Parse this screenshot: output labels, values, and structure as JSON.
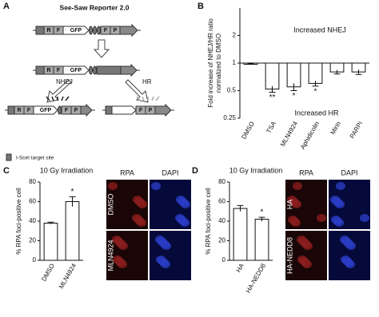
{
  "panel_labels": [
    "A",
    "B",
    "C",
    "D"
  ],
  "diagram": {
    "title": "See-Saw Reporter 2.0",
    "r": "R",
    "f": "F",
    "gfp": "GFP",
    "p": "P",
    "nhej": "NHEJ",
    "hr": "HR",
    "legend": "I-SceI target site"
  },
  "images": [
    {
      "columns": [
        "RPA",
        "DAPI"
      ],
      "rows": [
        "DMSO",
        "MLN4924"
      ]
    },
    {
      "columns": [
        "RPA",
        "DAPI"
      ],
      "rows": [
        "HA",
        "HA-NEDD8"
      ]
    }
  ],
  "chart_data": [
    {
      "type": "bar",
      "log_scale": true,
      "ylabel": [
        "Fold increase of NHEJ/HR ratio",
        "normalized to DMSO"
      ],
      "upper_note": "Increased NHEJ",
      "lower_note": "Increased HR",
      "categories": [
        "DMSO",
        "TSA",
        "MLN4924",
        "Aphidicolin",
        "Mirin",
        "PARPi"
      ],
      "values": [
        1,
        0.52,
        0.55,
        0.6,
        0.8,
        0.8
      ],
      "errors": [
        0.02,
        0.04,
        0.05,
        0.04,
        0.04,
        0.05
      ],
      "significance": [
        null,
        "**",
        "*",
        "*",
        null,
        null
      ],
      "color": "#ffffff",
      "ylim": [
        0.25,
        4
      ],
      "yticks": [
        0.25,
        0.5,
        1,
        2
      ]
    },
    {
      "type": "bar",
      "title": "10 Gy Irradiation",
      "ylabel": [
        "% RPA foci-positive cell"
      ],
      "categories": [
        "DMSO",
        "MLN4924"
      ],
      "values": [
        38,
        60
      ],
      "errors": [
        1,
        5
      ],
      "significance": [
        null,
        "*"
      ],
      "color": "#ffffff",
      "ylim": [
        0,
        80
      ],
      "yticks": [
        0,
        20,
        40,
        60,
        80
      ]
    },
    {
      "type": "bar",
      "title": "10 Gy Irradiation",
      "ylabel": [
        "% RPA foci-positive cell"
      ],
      "categories": [
        "HA",
        "HA-NEDD8"
      ],
      "values": [
        53,
        42
      ],
      "errors": [
        3,
        2
      ],
      "significance": [
        null,
        "*"
      ],
      "color": "#ffffff",
      "ylim": [
        0,
        80
      ],
      "yticks": [
        0,
        20,
        40,
        60,
        80
      ]
    }
  ]
}
